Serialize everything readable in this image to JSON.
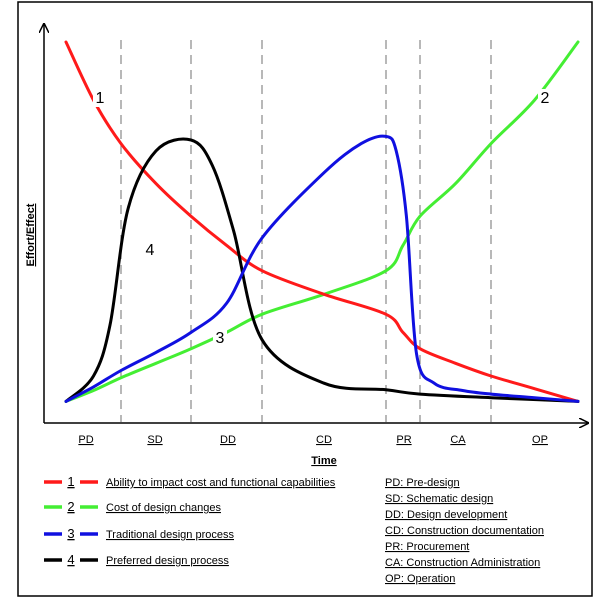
{
  "chart_data": {
    "type": "line",
    "ylabel": "Effort/Effect",
    "xlabel": "Time",
    "phases": [
      "PD",
      "SD",
      "DD",
      "CD",
      "PR",
      "CA",
      "OP"
    ],
    "phase_boundaries": [
      1,
      2,
      3,
      4,
      5,
      6
    ],
    "x_range": [
      0,
      7
    ],
    "y_range": [
      0,
      10
    ],
    "series": [
      {
        "label_num": "1",
        "name": "Ability to impact cost and functional capabilities",
        "color": "#ff1a1a",
        "x": [
          0,
          0.5,
          1,
          1.5,
          2,
          2.5,
          3,
          3.5,
          4,
          4.5,
          5,
          5.5,
          6,
          6.5,
          7
        ],
        "y": [
          10,
          8.4,
          7.2,
          6.1,
          5.2,
          4.4,
          3.7,
          3.05,
          2.5,
          2.0,
          1.55,
          1.15,
          0.8,
          0.45,
          0.1
        ]
      },
      {
        "label_num": "2",
        "name": "Cost of design changes",
        "color": "#44ee33",
        "x": [
          0,
          0.5,
          1,
          1.5,
          2,
          2.5,
          3,
          3.5,
          4,
          4.5,
          5,
          5.5,
          6,
          6.5,
          7
        ],
        "y": [
          0.1,
          0.4,
          0.75,
          1.15,
          1.55,
          2.0,
          2.5,
          3.05,
          3.7,
          4.4,
          5.2,
          6.1,
          7.2,
          8.4,
          10
        ]
      },
      {
        "label_num": "3",
        "name": "Traditional design process",
        "color": "#1010e0",
        "x": [
          0,
          0.5,
          1,
          1.5,
          2,
          2.5,
          3,
          3.5,
          3.8,
          4.0,
          4.3,
          4.6,
          4.9,
          5.2,
          5.6,
          6.0,
          6.5,
          7
        ],
        "y": [
          0.1,
          0.5,
          0.95,
          1.45,
          2.0,
          2.8,
          4.6,
          6.4,
          7.2,
          7.4,
          7.0,
          5.2,
          1.4,
          0.6,
          0.4,
          0.3,
          0.2,
          0.1
        ]
      },
      {
        "label_num": "4",
        "name": "Preferred design process",
        "color": "#000000",
        "x": [
          0,
          0.5,
          0.8,
          1.1,
          1.5,
          2.0,
          2.3,
          2.6,
          3.0,
          3.5,
          4.0,
          5.0,
          6.0,
          7.0
        ],
        "y": [
          0.1,
          0.8,
          2.2,
          5.4,
          7.0,
          7.3,
          6.6,
          4.8,
          1.8,
          0.6,
          0.42,
          0.3,
          0.2,
          0.1
        ]
      }
    ],
    "curve_labels": [
      {
        "text": "1",
        "series": 0
      },
      {
        "text": "2",
        "series": 1
      },
      {
        "text": "3",
        "series": 2
      },
      {
        "text": "4",
        "series": 3
      }
    ],
    "phase_legend": [
      "PD: Pre-design",
      "SD: Schematic design",
      "DD: Design development",
      "CD: Construction documentation",
      "PR: Procurement",
      "CA: Construction Administration",
      "OP: Operation"
    ]
  }
}
